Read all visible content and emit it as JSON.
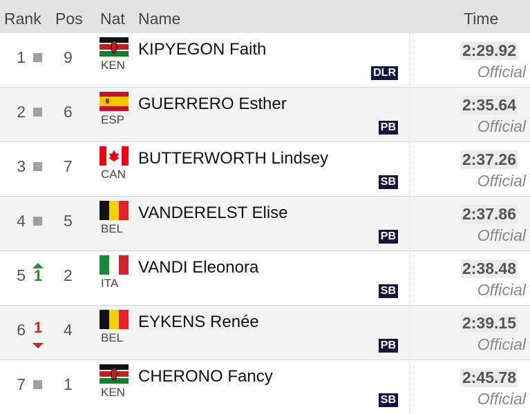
{
  "table": {
    "header": [
      "Rank",
      "Pos",
      "Nat",
      "Name",
      "Time"
    ],
    "rows": [
      {
        "rank": "1",
        "move": "same",
        "pos": "9",
        "nat": "KEN",
        "name": "KIPYEGON Faith",
        "record": "DLR",
        "time": "2:29.92",
        "status": "Official"
      },
      {
        "rank": "2",
        "move": "same",
        "pos": "6",
        "nat": "ESP",
        "name": "GUERRERO Esther",
        "record": "PB",
        "time": "2:35.64",
        "status": "Official"
      },
      {
        "rank": "3",
        "move": "same",
        "pos": "7",
        "nat": "CAN",
        "name": "BUTTERWORTH Lindsey",
        "record": "SB",
        "time": "2:37.26",
        "status": "Official"
      },
      {
        "rank": "4",
        "move": "same",
        "pos": "5",
        "nat": "BEL",
        "name": "VANDERELST Elise",
        "record": "PB",
        "time": "2:37.86",
        "status": "Official"
      },
      {
        "rank": "5",
        "move": "up",
        "change": "1",
        "pos": "2",
        "nat": "ITA",
        "name": "VANDI Eleonora",
        "record": "SB",
        "time": "2:38.48",
        "status": "Official"
      },
      {
        "rank": "6",
        "move": "down",
        "change": "1",
        "pos": "4",
        "nat": "BEL",
        "name": "EYKENS Renée",
        "record": "PB",
        "time": "2:39.15",
        "status": "Official"
      },
      {
        "rank": "7",
        "move": "same",
        "pos": "1",
        "nat": "KEN",
        "name": "CHERONO Fancy",
        "record": "SB",
        "time": "2:45.78",
        "status": "Official"
      }
    ]
  }
}
